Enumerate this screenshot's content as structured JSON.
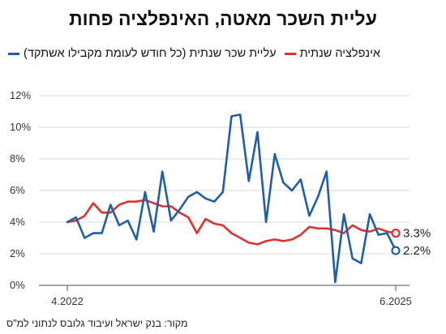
{
  "title": "עליית השכר מאטה, האינפלציה פחות",
  "source": "מקור: בנק ישראל ועיבוד גלובס לנתוני למ\"ס",
  "colors": {
    "wages": "#1f5fa6",
    "inflation": "#e03131",
    "grid": "#d9d9d9",
    "axis": "#888888"
  },
  "chart_data": {
    "type": "line",
    "y_ticks": [
      "0%",
      "2%",
      "4%",
      "6%",
      "8%",
      "10%",
      "12%"
    ],
    "ylim": [
      0,
      12
    ],
    "x_tick_labels": [
      {
        "index": 0,
        "label": "4.2022"
      },
      {
        "index": 38,
        "label": "6.2025"
      }
    ],
    "series": [
      {
        "name": "עליית שכר שנתית (כל חודש לעומת מקבילו אשתקד)",
        "color": "#1f5fa6",
        "end_label": "2.2%",
        "values": [
          4.0,
          4.3,
          3.0,
          3.3,
          3.3,
          5.1,
          3.8,
          4.1,
          2.9,
          5.9,
          3.4,
          7.2,
          4.1,
          4.8,
          5.6,
          5.9,
          5.5,
          5.3,
          5.9,
          10.7,
          10.8,
          6.6,
          9.7,
          4.0,
          8.3,
          6.5,
          6.0,
          6.7,
          4.4,
          5.6,
          7.2,
          0.2,
          4.5,
          1.7,
          1.4,
          4.5,
          3.2,
          3.3,
          2.2
        ]
      },
      {
        "name": "אינפלציה שנתית",
        "color": "#e03131",
        "end_label": "3.3%",
        "values": [
          4.0,
          4.1,
          4.4,
          5.2,
          4.6,
          4.6,
          5.1,
          5.3,
          5.3,
          5.4,
          5.2,
          5.0,
          5.0,
          4.6,
          4.3,
          3.3,
          4.2,
          3.9,
          3.8,
          3.3,
          3.0,
          2.7,
          2.6,
          2.8,
          2.9,
          2.8,
          2.9,
          3.2,
          3.7,
          3.6,
          3.6,
          3.5,
          3.3,
          3.8,
          3.5,
          3.4,
          3.6,
          3.4,
          3.3
        ]
      }
    ]
  }
}
